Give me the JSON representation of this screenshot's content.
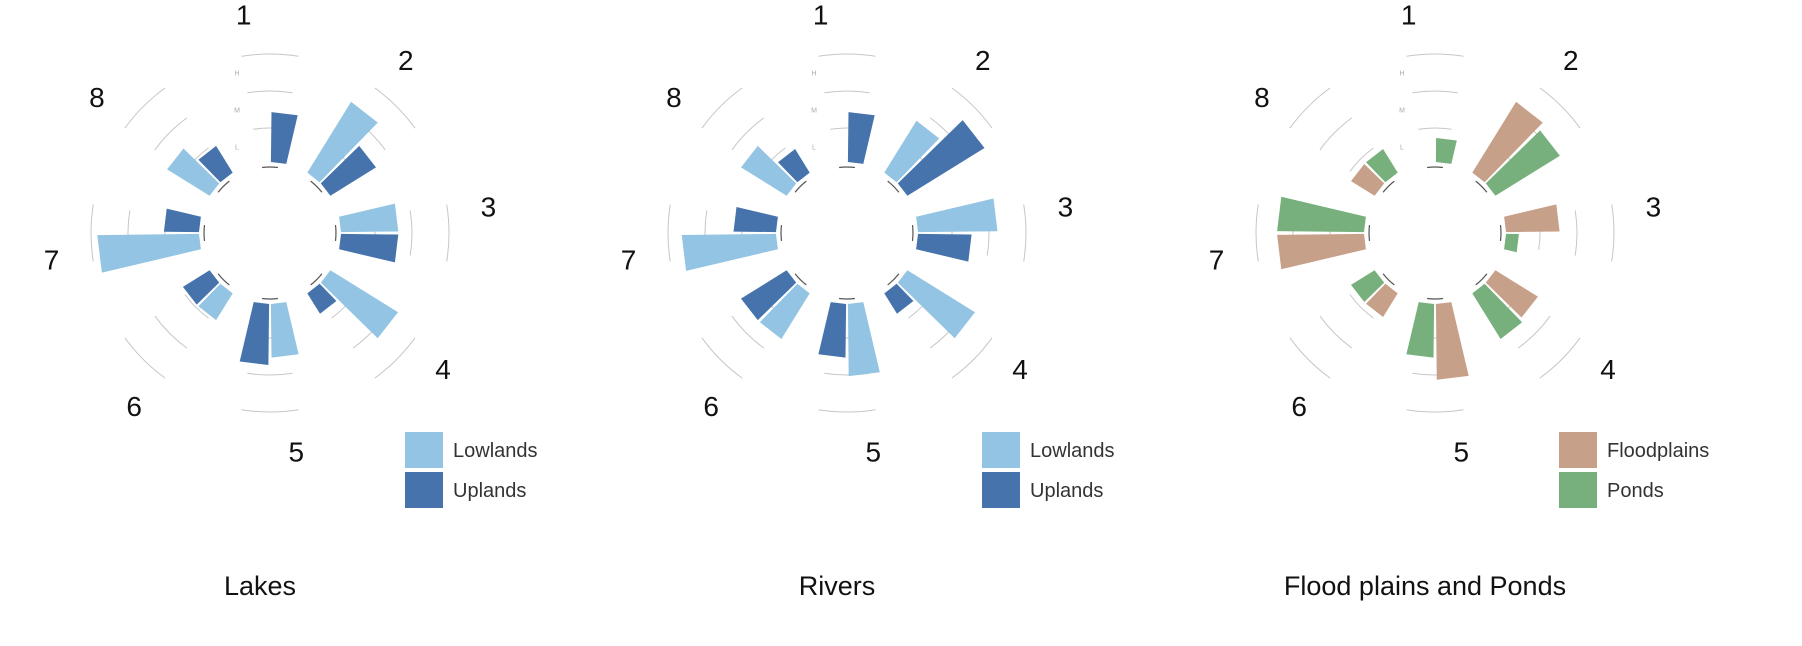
{
  "chart_data": [
    {
      "type": "radial-bar",
      "title": "Lakes",
      "segments": [
        "1",
        "2",
        "3",
        "4",
        "5",
        "6",
        "7",
        "8"
      ],
      "ring_labels": [
        "L",
        "M",
        "H"
      ],
      "scale_max": 3,
      "series": [
        {
          "name": "Lowlands",
          "color": "#93C4E3",
          "values": [
            0.0,
            2.25,
            1.55,
            2.15,
            1.45,
            0.85,
            2.75,
            1.35
          ]
        },
        {
          "name": "Uplands",
          "color": "#4673AB",
          "values": [
            1.35,
            1.45,
            1.55,
            0.65,
            1.65,
            0.85,
            0.95,
            0.85
          ]
        }
      ],
      "legend": {
        "position": "bottom-right",
        "entries": [
          "Lowlands",
          "Uplands"
        ]
      }
    },
    {
      "type": "radial-bar",
      "title": "Rivers",
      "segments": [
        "1",
        "2",
        "3",
        "4",
        "5",
        "6",
        "7",
        "8"
      ],
      "ring_labels": [
        "L",
        "M",
        "H"
      ],
      "scale_max": 3,
      "series": [
        {
          "name": "Lowlands",
          "color": "#93C4E3",
          "values": [
            0.0,
            1.65,
            2.15,
            2.15,
            1.95,
            1.45,
            2.55,
            1.45
          ]
        },
        {
          "name": "Uplands",
          "color": "#4673AB",
          "values": [
            1.35,
            2.45,
            1.45,
            0.65,
            1.45,
            1.45,
            1.15,
            0.75
          ]
        }
      ],
      "legend": {
        "position": "bottom-right",
        "entries": [
          "Lowlands",
          "Uplands"
        ]
      }
    },
    {
      "type": "radial-bar",
      "title": "Flood plains and Ponds",
      "segments": [
        "1",
        "2",
        "3",
        "4",
        "5",
        "6",
        "7",
        "8"
      ],
      "ring_labels": [
        "L",
        "M",
        "H"
      ],
      "scale_max": 3,
      "series": [
        {
          "name": "Floodplains",
          "color": "#C7A08A",
          "values": [
            0.0,
            2.25,
            1.45,
            1.35,
            2.05,
            0.75,
            2.35,
            0.75
          ]
        },
        {
          "name": "Ponds",
          "color": "#77B07C",
          "values": [
            0.65,
            2.05,
            0.35,
            1.45,
            1.45,
            0.75,
            2.35,
            0.75
          ]
        }
      ],
      "legend": {
        "position": "bottom-right",
        "entries": [
          "Floodplains",
          "Ponds"
        ]
      }
    }
  ]
}
